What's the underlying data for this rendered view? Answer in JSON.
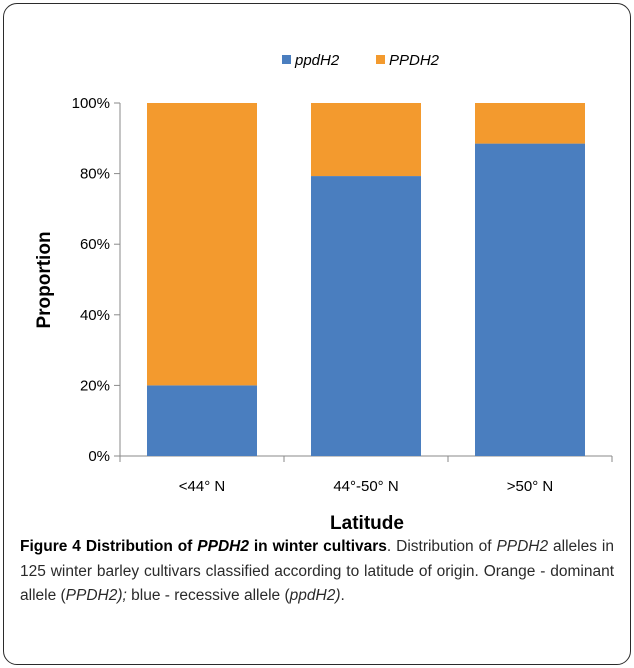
{
  "chart_data": {
    "type": "bar",
    "stacked": true,
    "categories": [
      "<44° N",
      "44°-50° N",
      ">50° N"
    ],
    "series": [
      {
        "name": "ppdH2",
        "color": "#4a7ebf",
        "values": [
          20,
          79.3,
          88.5
        ]
      },
      {
        "name": "PPDH2",
        "color": "#f39a2e",
        "values": [
          80,
          20.7,
          11.5
        ]
      }
    ],
    "xlabel": "Latitude",
    "ylabel": "Proportion",
    "ylim": [
      0,
      100
    ],
    "yticks": [
      "0%",
      "20%",
      "40%",
      "60%",
      "80%",
      "100%"
    ],
    "legend_position": "top",
    "grid": false
  },
  "caption": {
    "title_parts": [
      "Figure 4 Distribution of ",
      "PPDH2",
      " in winter cultivars"
    ],
    "body_parts": [
      ". Distribution of ",
      "PPDH2",
      " alleles in 125 winter barley cultivars classified according to latitude of origin. Orange - dominant allele (",
      "PPDH2);",
      " blue - recessive allele (",
      "ppdH2)",
      "."
    ]
  }
}
